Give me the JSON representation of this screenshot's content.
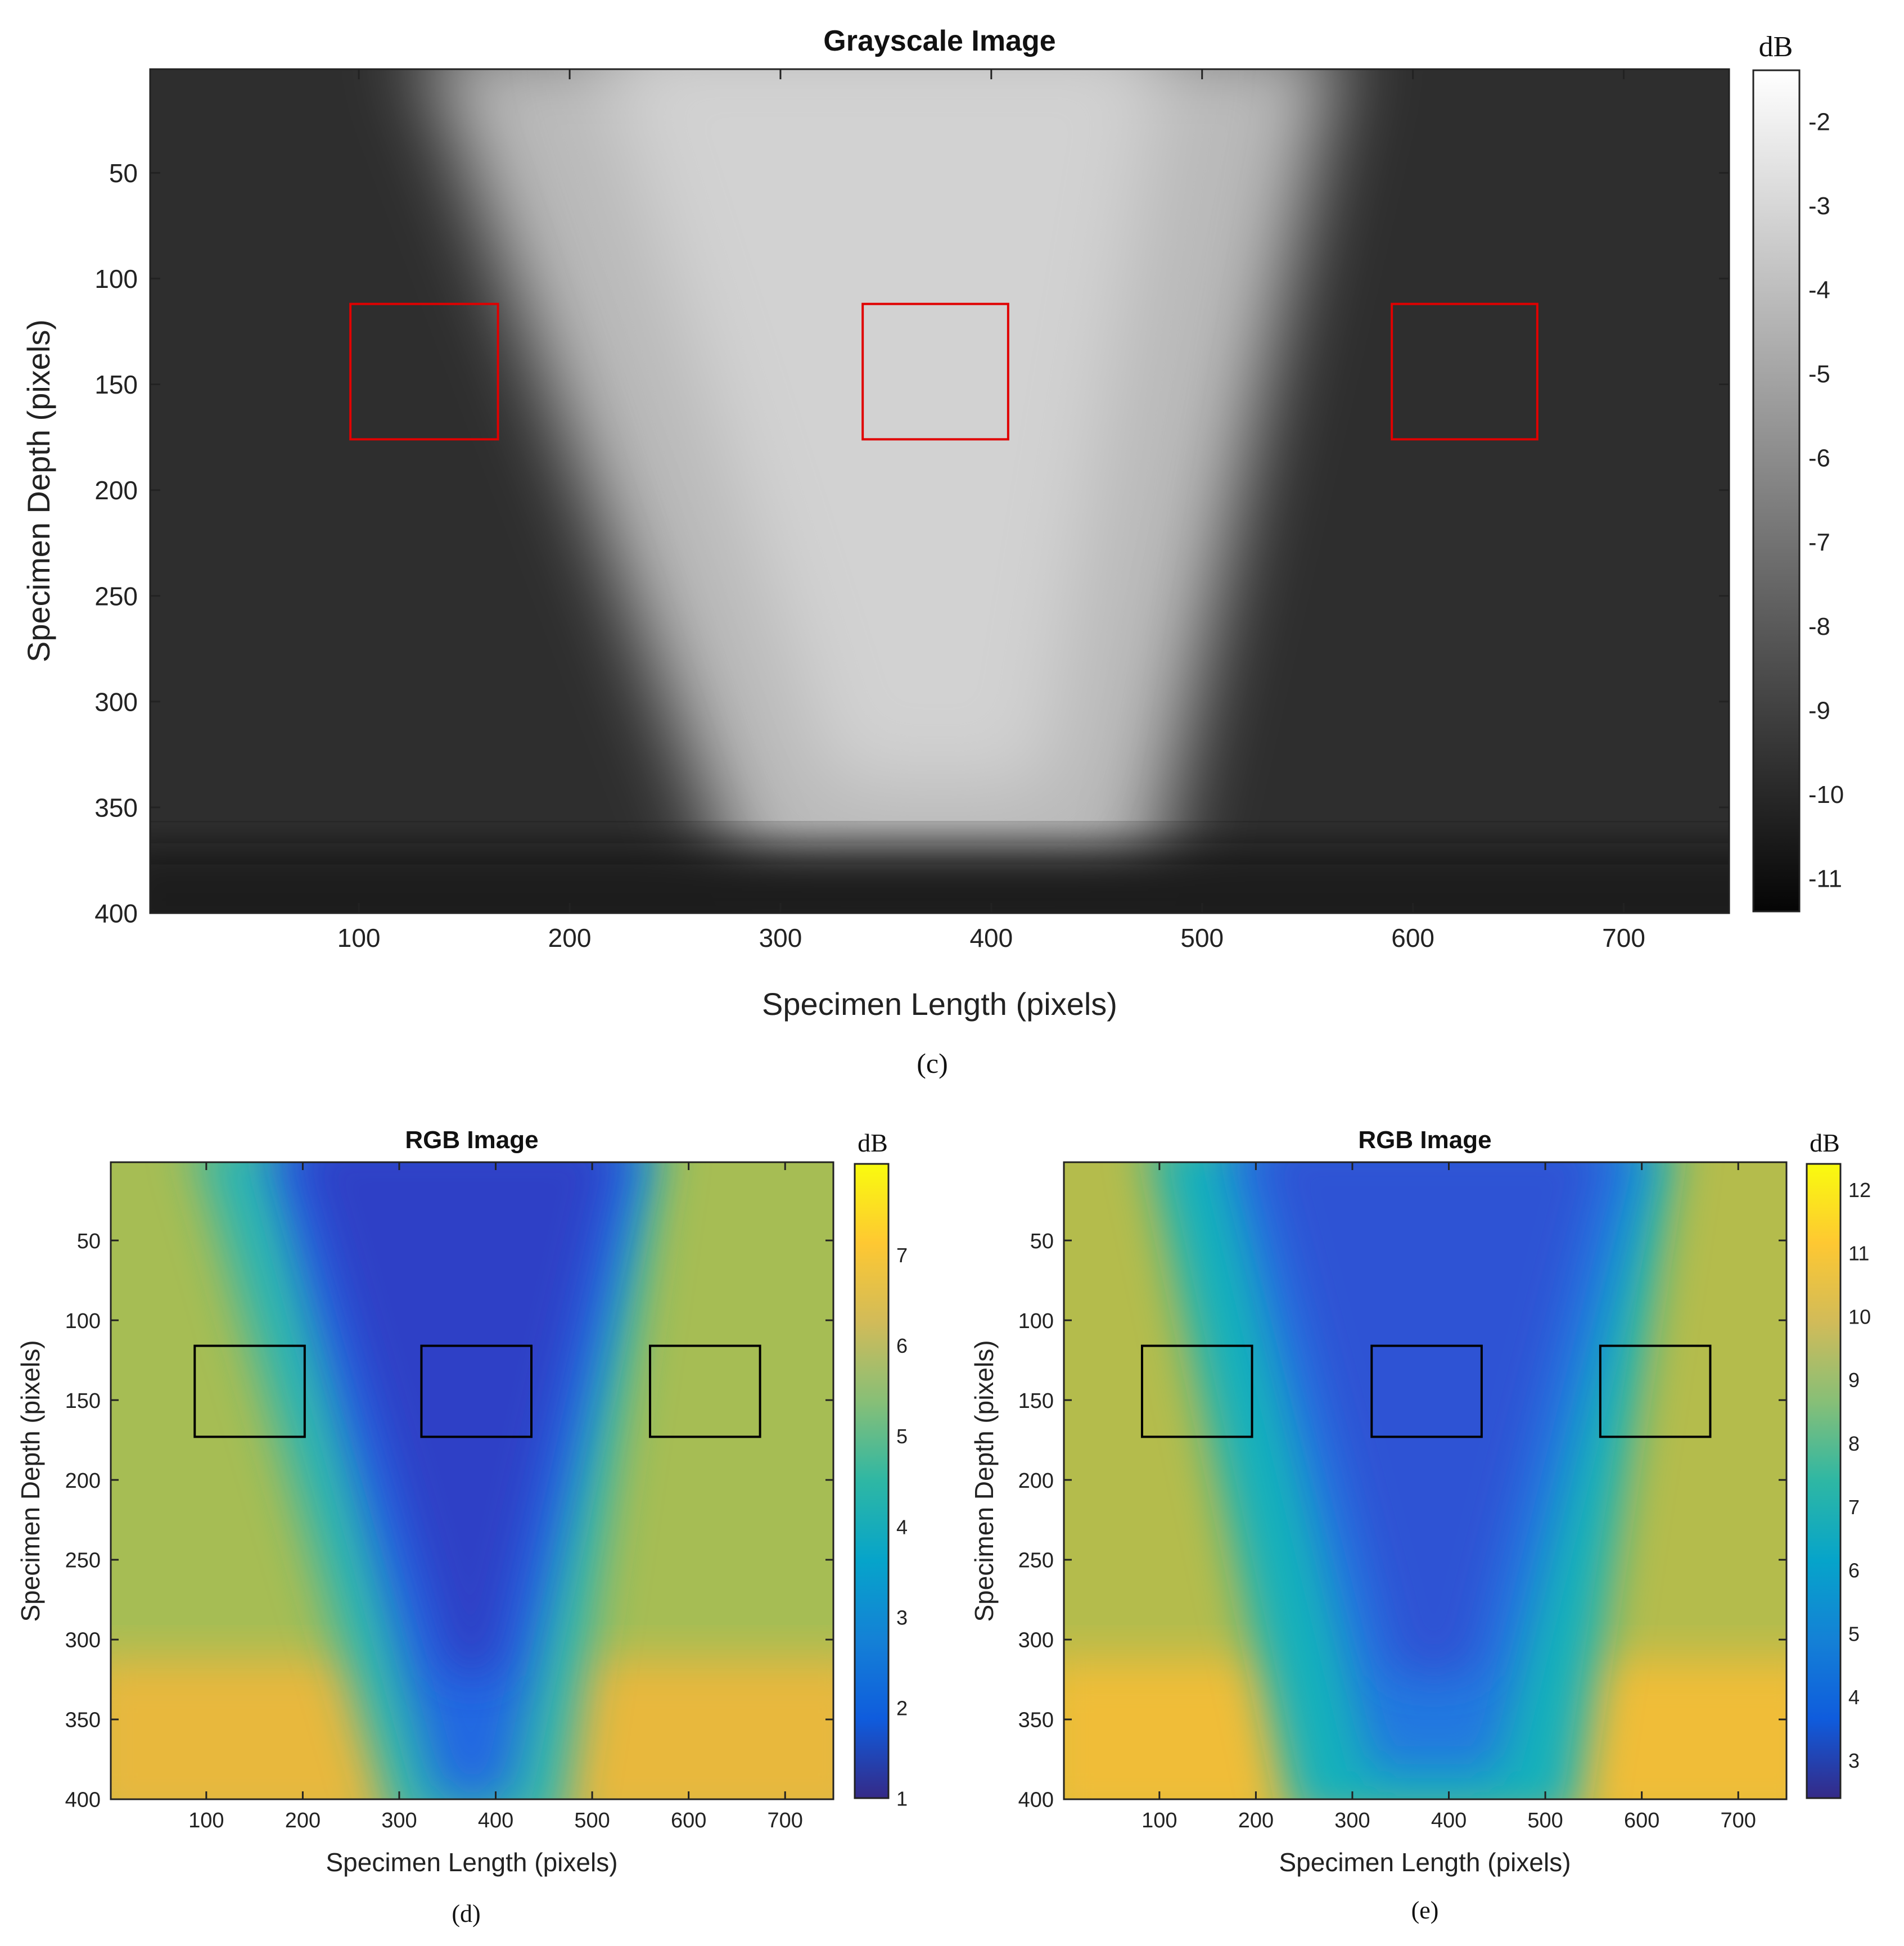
{
  "colors": {
    "marker_box_grayscale": "#e00000",
    "marker_box_rgb": "#000000",
    "axis": "#222222"
  },
  "chart_data": [
    {
      "id": "c",
      "type": "heatmap",
      "title": "Grayscale Image",
      "caption": "(c)",
      "xlabel": "Specimen Length (pixels)",
      "ylabel": "Specimen Depth (pixels)",
      "xlim": [
        1,
        750
      ],
      "ylim": [
        400,
        1
      ],
      "xticks": [
        100,
        200,
        300,
        400,
        500,
        600,
        700
      ],
      "yticks": [
        50,
        100,
        150,
        200,
        250,
        300,
        350,
        400
      ],
      "colormap": "gray",
      "colorbar": {
        "label": "dB",
        "range": [
          -11.4,
          -1.4
        ],
        "ticks": [
          -11,
          -10,
          -9,
          -8,
          -7,
          -6,
          -5,
          -4,
          -3,
          -2
        ]
      },
      "marker_boxes": [
        {
          "x": [
            96,
            166
          ],
          "y": [
            112,
            176
          ]
        },
        {
          "x": [
            339,
            408
          ],
          "y": [
            112,
            176
          ]
        },
        {
          "x": [
            590,
            659
          ],
          "y": [
            112,
            176
          ]
        }
      ]
    },
    {
      "id": "d",
      "type": "heatmap",
      "title": "RGB Image",
      "caption": "(d)",
      "xlabel": "Specimen Length (pixels)",
      "ylabel": "Specimen Depth (pixels)",
      "xlim": [
        1,
        750
      ],
      "ylim": [
        400,
        1
      ],
      "xticks": [
        100,
        200,
        300,
        400,
        500,
        600,
        700
      ],
      "yticks": [
        50,
        100,
        150,
        200,
        250,
        300,
        350,
        400
      ],
      "colormap": "parula",
      "colorbar": {
        "label": "dB",
        "range": [
          1,
          8
        ],
        "ticks": [
          1,
          2,
          3,
          4,
          5,
          6,
          7
        ]
      },
      "marker_boxes": [
        {
          "x": [
            88,
            202
          ],
          "y": [
            116,
            173
          ]
        },
        {
          "x": [
            323,
            437
          ],
          "y": [
            116,
            173
          ]
        },
        {
          "x": [
            560,
            674
          ],
          "y": [
            116,
            173
          ]
        }
      ]
    },
    {
      "id": "e",
      "type": "heatmap",
      "title": "RGB Image",
      "caption": "(e)",
      "xlabel": "Specimen Length (pixels)",
      "ylabel": "Specimen Depth (pixels)",
      "xlim": [
        1,
        750
      ],
      "ylim": [
        400,
        1
      ],
      "xticks": [
        100,
        200,
        300,
        400,
        500,
        600,
        700
      ],
      "yticks": [
        50,
        100,
        150,
        200,
        250,
        300,
        350,
        400
      ],
      "colormap": "parula",
      "colorbar": {
        "label": "dB",
        "range": [
          2.4,
          12.4
        ],
        "ticks": [
          3,
          4,
          5,
          6,
          7,
          8,
          9,
          10,
          11,
          12
        ]
      },
      "marker_boxes": [
        {
          "x": [
            82,
            196
          ],
          "y": [
            116,
            173
          ]
        },
        {
          "x": [
            320,
            434
          ],
          "y": [
            116,
            173
          ]
        },
        {
          "x": [
            557,
            671
          ],
          "y": [
            116,
            173
          ]
        }
      ]
    }
  ]
}
